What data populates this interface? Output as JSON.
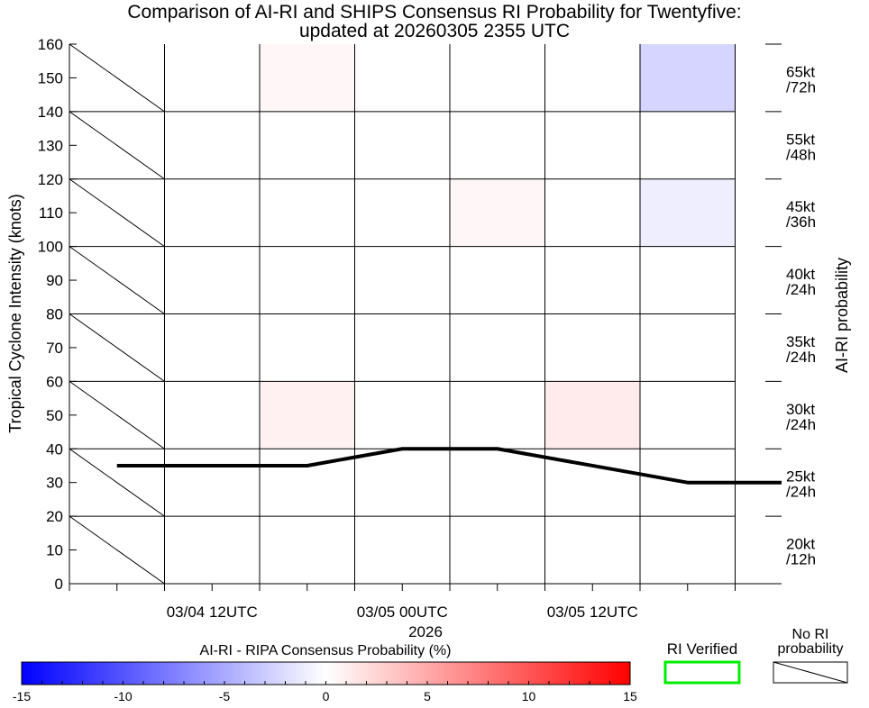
{
  "chart_data": {
    "type": "heatmap",
    "title_line1": "Comparison of AI-RI and SHIPS Consensus RI Probability for Twentyfive:",
    "title_line2": "updated at 20260305 2355 UTC",
    "ylabel": "Tropical Cyclone Intensity (knots)",
    "right_label": "AI-RI probability",
    "x_year_label": "2026",
    "ylim": [
      0,
      160
    ],
    "y_ticks": [
      0,
      10,
      20,
      30,
      40,
      50,
      60,
      70,
      80,
      90,
      100,
      110,
      120,
      130,
      140,
      150,
      160
    ],
    "x_tick_labels": [
      {
        "label": "03/04 12UTC",
        "col": 1
      },
      {
        "label": "03/05 00UTC",
        "col": 3
      },
      {
        "label": "03/05 12UTC",
        "col": 5
      }
    ],
    "columns": 7,
    "thresholds": [
      {
        "line1": "20kt",
        "line2": "/12h"
      },
      {
        "line1": "25kt",
        "line2": "/24h"
      },
      {
        "line1": "30kt",
        "line2": "/24h"
      },
      {
        "line1": "35kt",
        "line2": "/24h"
      },
      {
        "line1": "40kt",
        "line2": "/24h"
      },
      {
        "line1": "45kt",
        "line2": "/36h"
      },
      {
        "line1": "55kt",
        "line2": "/48h"
      },
      {
        "line1": "65kt",
        "line2": "/72h"
      }
    ],
    "no_probability_col": 0,
    "cells": [
      {
        "col": 2,
        "row": 7,
        "value": 0.5
      },
      {
        "col": 6,
        "row": 7,
        "value": -2.5
      },
      {
        "col": 4,
        "row": 5,
        "value": 0.5
      },
      {
        "col": 6,
        "row": 5,
        "value": -1.0
      },
      {
        "col": 2,
        "row": 2,
        "value": 0.8
      },
      {
        "col": 5,
        "row": 2,
        "value": 1.2
      }
    ],
    "intensity_line": {
      "name": "Intensity",
      "x": [
        0.5,
        2.5,
        3.5,
        4.5,
        6.5,
        7.5
      ],
      "y": [
        35,
        35,
        40,
        40,
        30,
        30
      ]
    },
    "colorbar": {
      "title": "AI-RI - RIPA Consensus Probability (%)",
      "min": -15,
      "max": 15,
      "ticks": [
        -15,
        -10,
        -5,
        0,
        5,
        10,
        15
      ],
      "colors": [
        "#0000ff",
        "#ffffff",
        "#ff0000"
      ]
    },
    "legend": {
      "verified_label": "RI Verified",
      "verified_color": "#00ee00",
      "no_ri_line1": "No RI",
      "no_ri_line2": "probability"
    }
  }
}
